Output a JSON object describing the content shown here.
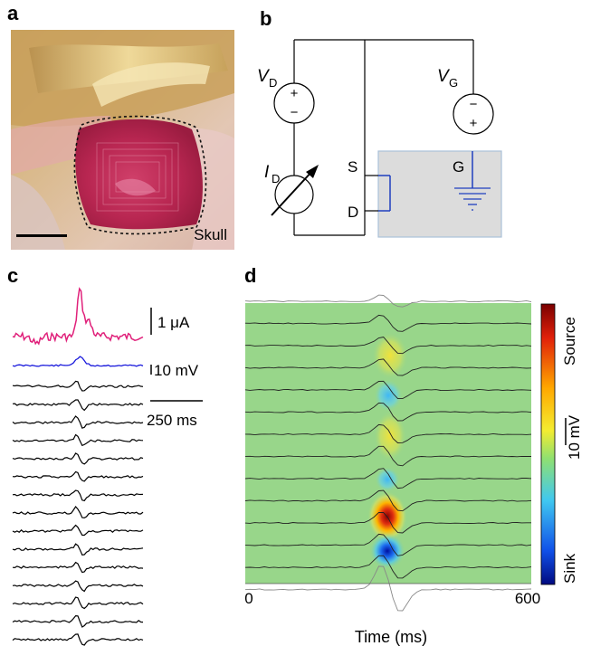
{
  "panel_labels": {
    "a": "a",
    "b": "b",
    "c": "c",
    "d": "d"
  },
  "panel_a": {
    "tissue_label": "Skull"
  },
  "panel_b": {
    "vd_main": "V",
    "vd_sub": "D",
    "vg_main": "V",
    "vg_sub": "G",
    "id_main": "I",
    "id_sub": "D",
    "plus": "+",
    "minus": "−",
    "terminal_s": "S",
    "terminal_d": "D",
    "terminal_g": "G",
    "colors": {
      "device_fill": "#dcdcdc",
      "device_stroke": "#a9c0d8",
      "transistor": "#1f3fbf"
    }
  },
  "panel_c": {
    "scale_current": "1 μA",
    "scale_voltage": "10 mV",
    "scale_time": "250 ms",
    "trace_colors": {
      "current": "#e0207a",
      "voltage": "#1a1adc",
      "channels": "#000000"
    },
    "channel_count": 15
  },
  "panel_d": {
    "colorbar_top": "Source",
    "colorbar_bottom": "Sink",
    "colorbar_scale": "10 mV",
    "x_tick_start": "0",
    "x_tick_end": "600",
    "xlabel": "Time (ms)",
    "background_color": "#98d68a"
  },
  "chart_data": {
    "type": "heatmap",
    "xlabel": "Time (ms)",
    "xlim": [
      0,
      600
    ],
    "x_ticks": [
      "0",
      "600"
    ],
    "colorbar_labels": [
      "Source",
      "Sink"
    ],
    "colorbar_scale": "10 mV",
    "trace_count": 12,
    "features": [
      {
        "kind": "source",
        "time_ms": 300,
        "channel": 9
      },
      {
        "kind": "sink",
        "time_ms": 300,
        "channel": 10
      },
      {
        "kind": "source",
        "time_ms": 300,
        "channel": 4
      },
      {
        "kind": "sink",
        "time_ms": 300,
        "channel": 6
      }
    ]
  }
}
